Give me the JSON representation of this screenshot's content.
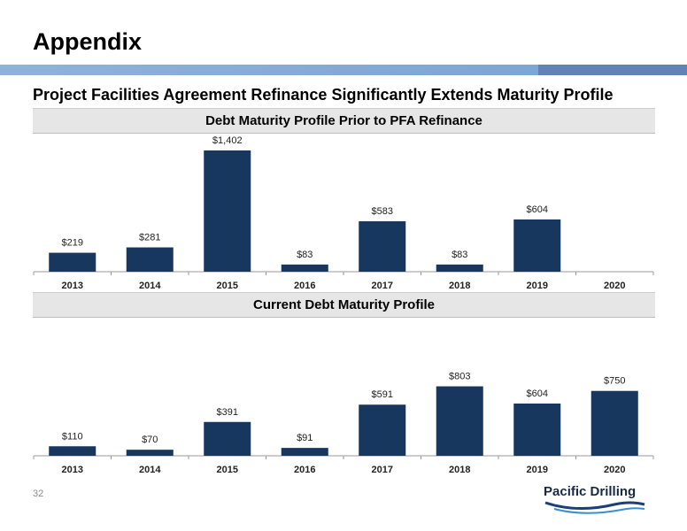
{
  "page": {
    "title": "Appendix",
    "subtitle": "Project Facilities Agreement Refinance Significantly Extends Maturity Profile",
    "page_number": "32",
    "logo_text": "Pacific Drilling"
  },
  "colors": {
    "bar": "#17375e",
    "header_band": "#e6e6e6",
    "accent_bar": "#7ea6d2"
  },
  "chart_data": [
    {
      "type": "bar",
      "title": "Debt Maturity Profile Prior to PFA Refinance",
      "categories": [
        "2013",
        "2014",
        "2015",
        "2016",
        "2017",
        "2018",
        "2019",
        "2020"
      ],
      "values": [
        219,
        281,
        1402,
        83,
        583,
        83,
        604,
        0
      ],
      "labels": [
        "$219",
        "$281",
        "$1,402",
        "$83",
        "$583",
        "$83",
        "$604",
        ""
      ],
      "ylim": [
        0,
        1402
      ],
      "grid": false,
      "legend": "none"
    },
    {
      "type": "bar",
      "title": "Current Debt Maturity Profile",
      "categories": [
        "2013",
        "2014",
        "2015",
        "2016",
        "2017",
        "2018",
        "2019",
        "2020"
      ],
      "values": [
        110,
        70,
        391,
        91,
        591,
        803,
        604,
        750
      ],
      "labels": [
        "$110",
        "$70",
        "$391",
        "$91",
        "$591",
        "$803",
        "$604",
        "$750"
      ],
      "ylim": [
        0,
        1402
      ],
      "grid": false,
      "legend": "none"
    }
  ]
}
